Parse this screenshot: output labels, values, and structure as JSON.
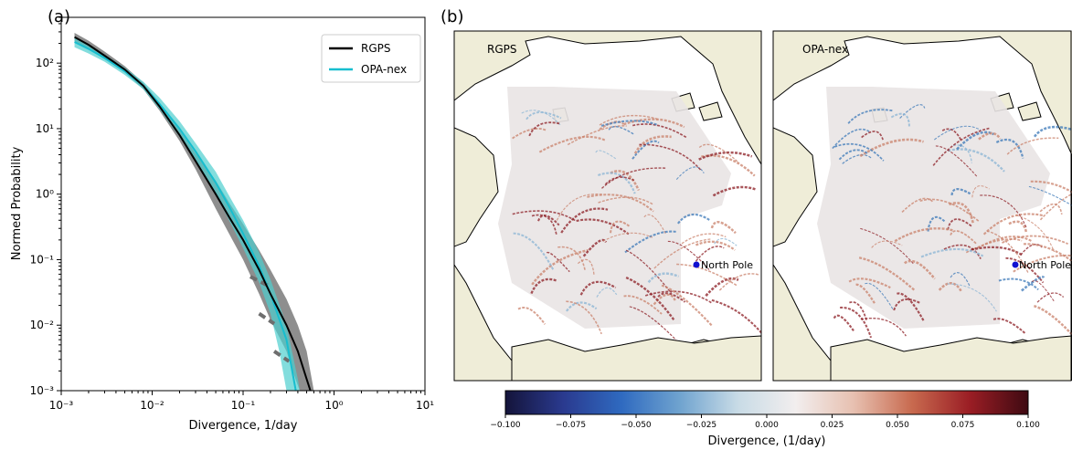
{
  "chart_data": [
    {
      "type": "line",
      "panel_label": "(a)",
      "xlabel": "Divergence, 1/day",
      "ylabel": "Normed Probability",
      "xscale": "log",
      "yscale": "log",
      "xlim": [
        0.001,
        10
      ],
      "ylim": [
        0.001,
        500
      ],
      "x_ticks": [
        0.001,
        0.01,
        0.1,
        1,
        10
      ],
      "x_tick_labels": [
        "10⁻³",
        "10⁻²",
        "10⁻¹",
        "10⁰",
        "10¹"
      ],
      "y_ticks": [
        0.001,
        0.01,
        0.1,
        1,
        10,
        100
      ],
      "y_tick_labels": [
        "10⁻³",
        "10⁻²",
        "10⁻¹",
        "10⁰",
        "10¹",
        "10²"
      ],
      "legend_position": "top-right",
      "grid": false,
      "series": [
        {
          "name": "RGPS",
          "color": "#000000",
          "band_color": "#7a7a7a",
          "points": [
            [
              0.0014,
              250
            ],
            [
              0.002,
              190
            ],
            [
              0.003,
              130
            ],
            [
              0.005,
              80
            ],
            [
              0.008,
              45
            ],
            [
              0.012,
              22
            ],
            [
              0.02,
              8
            ],
            [
              0.03,
              3.2
            ],
            [
              0.05,
              1.0
            ],
            [
              0.07,
              0.45
            ],
            [
              0.1,
              0.2
            ],
            [
              0.15,
              0.07
            ],
            [
              0.2,
              0.03
            ],
            [
              0.3,
              0.01
            ],
            [
              0.4,
              0.004
            ],
            [
              0.5,
              0.0015
            ],
            [
              0.55,
              0.001
            ]
          ],
          "band_upper": [
            [
              0.0014,
              290
            ],
            [
              0.002,
              220
            ],
            [
              0.003,
              150
            ],
            [
              0.005,
              90
            ],
            [
              0.008,
              50
            ],
            [
              0.012,
              25
            ],
            [
              0.02,
              9.5
            ],
            [
              0.03,
              4.2
            ],
            [
              0.05,
              1.6
            ],
            [
              0.07,
              0.75
            ],
            [
              0.1,
              0.35
            ],
            [
              0.15,
              0.14
            ],
            [
              0.2,
              0.07
            ],
            [
              0.3,
              0.025
            ],
            [
              0.4,
              0.01
            ],
            [
              0.5,
              0.004
            ],
            [
              0.6,
              0.001
            ]
          ],
          "band_lower": [
            [
              0.0014,
              215
            ],
            [
              0.002,
              165
            ],
            [
              0.003,
              115
            ],
            [
              0.005,
              72
            ],
            [
              0.008,
              40
            ],
            [
              0.012,
              19
            ],
            [
              0.02,
              6.5
            ],
            [
              0.03,
              2.4
            ],
            [
              0.05,
              0.6
            ],
            [
              0.07,
              0.25
            ],
            [
              0.1,
              0.1
            ],
            [
              0.15,
              0.03
            ],
            [
              0.2,
              0.012
            ],
            [
              0.3,
              0.004
            ],
            [
              0.35,
              0.002
            ],
            [
              0.42,
              0.001
            ]
          ]
        },
        {
          "name": "OPA-nex",
          "color": "#17becf",
          "band_color": "#4fcfcf",
          "points": [
            [
              0.0014,
              210
            ],
            [
              0.002,
              165
            ],
            [
              0.003,
              120
            ],
            [
              0.005,
              75
            ],
            [
              0.008,
              45
            ],
            [
              0.012,
              24
            ],
            [
              0.02,
              10
            ],
            [
              0.03,
              4.5
            ],
            [
              0.05,
              1.5
            ],
            [
              0.07,
              0.65
            ],
            [
              0.1,
              0.25
            ],
            [
              0.15,
              0.08
            ],
            [
              0.2,
              0.03
            ],
            [
              0.3,
              0.006
            ],
            [
              0.38,
              0.001
            ]
          ],
          "band_upper": [
            [
              0.0014,
              245
            ],
            [
              0.002,
              190
            ],
            [
              0.003,
              135
            ],
            [
              0.005,
              85
            ],
            [
              0.008,
              52
            ],
            [
              0.012,
              30
            ],
            [
              0.02,
              13
            ],
            [
              0.03,
              6
            ],
            [
              0.05,
              2.2
            ],
            [
              0.07,
              0.95
            ],
            [
              0.1,
              0.4
            ],
            [
              0.15,
              0.13
            ],
            [
              0.2,
              0.05
            ],
            [
              0.3,
              0.01
            ],
            [
              0.4,
              0.0015
            ],
            [
              0.42,
              0.001
            ]
          ],
          "band_lower": [
            [
              0.0014,
              175
            ],
            [
              0.002,
              140
            ],
            [
              0.003,
              105
            ],
            [
              0.005,
              66
            ],
            [
              0.008,
              40
            ],
            [
              0.012,
              20
            ],
            [
              0.02,
              7.5
            ],
            [
              0.03,
              3.2
            ],
            [
              0.05,
              1.0
            ],
            [
              0.07,
              0.4
            ],
            [
              0.1,
              0.15
            ],
            [
              0.15,
              0.045
            ],
            [
              0.2,
              0.015
            ],
            [
              0.25,
              0.004
            ],
            [
              0.3,
              0.001
            ]
          ]
        }
      ]
    },
    {
      "type": "heatmap",
      "panel_label": "(b)",
      "maps": [
        {
          "title": "RGPS",
          "marker_label": "North Pole",
          "marker_color": "#1010d0"
        },
        {
          "title": "OPA-nex",
          "marker_label": "North Pole",
          "marker_color": "#1010d0"
        }
      ],
      "colorbar": {
        "label": "Divergence, (1/day)",
        "vmin": -0.1,
        "vmax": 0.1,
        "ticks": [
          -0.1,
          -0.075,
          -0.05,
          -0.025,
          0,
          0.025,
          0.05,
          0.075,
          0.1
        ],
        "tick_labels": [
          "−0.100",
          "−0.075",
          "−0.050",
          "−0.025",
          "0.000",
          "0.025",
          "0.050",
          "0.075",
          "0.100"
        ],
        "colormap": [
          "#14143a",
          "#2a3a8f",
          "#2f6ac0",
          "#6fa3cf",
          "#c8dbe6",
          "#f2eeee",
          "#e7c0b0",
          "#c86a4f",
          "#9a1d24",
          "#3e0a12"
        ]
      },
      "colors": {
        "land": "#efedd8",
        "ocean": "#ffffff",
        "ice_base": "#e9e4e4"
      }
    }
  ]
}
